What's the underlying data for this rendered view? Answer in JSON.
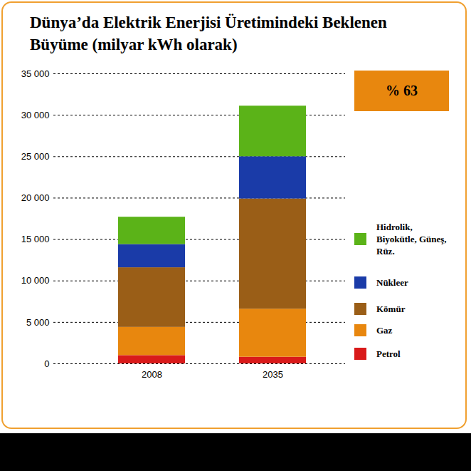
{
  "chart_data": {
    "type": "bar",
    "stacked": true,
    "title": "Dünya’da Elektrik Enerjisi Üretimindeki Beklenen Büyüme (milyar kWh olarak)",
    "annotations": [
      "% 63"
    ],
    "categories": [
      "2008",
      "2035"
    ],
    "series": [
      {
        "name": "Petrol",
        "color": "#d91a1a",
        "values": [
          1000,
          800
        ]
      },
      {
        "name": "Gaz",
        "color": "#e8870e",
        "values": [
          3400,
          5800
        ]
      },
      {
        "name": "Kömür",
        "color": "#9a5e17",
        "values": [
          7200,
          13300
        ]
      },
      {
        "name": "Nükleer",
        "color": "#1a3ba8",
        "values": [
          2800,
          5100
        ]
      },
      {
        "name": "Hidrolik, Biyokütle, Güneş, Rüz.",
        "color": "#5bb318",
        "values": [
          3300,
          6100
        ]
      }
    ],
    "ylim": [
      0,
      35000
    ],
    "yticks": [
      0,
      {
        "value": 5000,
        "label": "5 000"
      },
      {
        "value": 10000,
        "label": "10 000"
      },
      {
        "value": 15000,
        "label": "15 000"
      },
      {
        "value": 20000,
        "label": "20 000"
      },
      {
        "value": 25000,
        "label": "25 000"
      },
      {
        "value": 30000,
        "label": "30 000"
      },
      {
        "value": 35000,
        "label": "35 000"
      }
    ],
    "grid": true,
    "legend": "right"
  }
}
